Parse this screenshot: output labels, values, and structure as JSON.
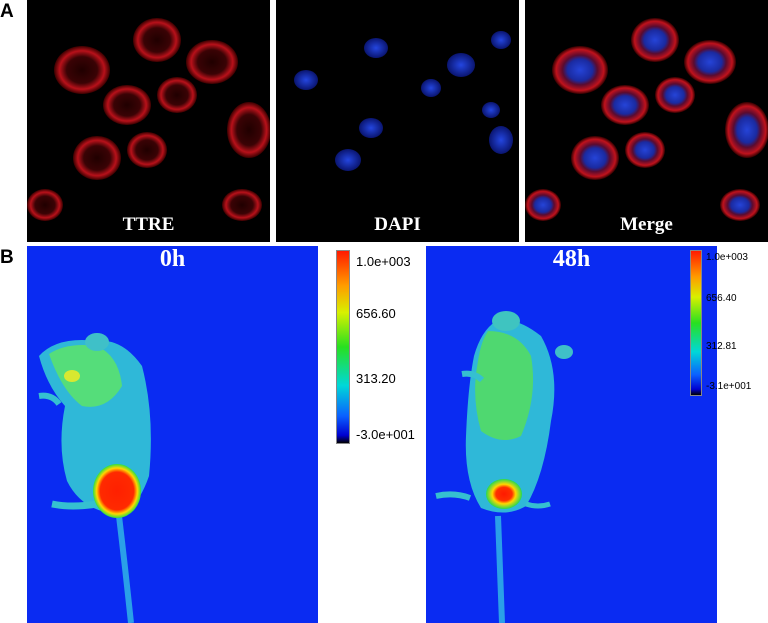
{
  "panel_a": {
    "letter": "A",
    "images": [
      {
        "label": "TTRE",
        "channel": "red"
      },
      {
        "label": "DAPI",
        "channel": "blue"
      },
      {
        "label": "Merge",
        "channel": "merge"
      }
    ]
  },
  "panel_b": {
    "letter": "B",
    "images": [
      {
        "time_label": "0h",
        "scale_ticks": [
          "1.0e+003",
          "656.60",
          "313.20",
          "-3.0e+001"
        ]
      },
      {
        "time_label": "48h",
        "scale_ticks": [
          "1.0e+003",
          "656.40",
          "312.81",
          "-3.1e+001"
        ]
      }
    ]
  },
  "colors": {
    "background_blue": "#0a2bf2",
    "ttre_red": "#c8141e",
    "dapi_blue": "#1e3cd2"
  }
}
